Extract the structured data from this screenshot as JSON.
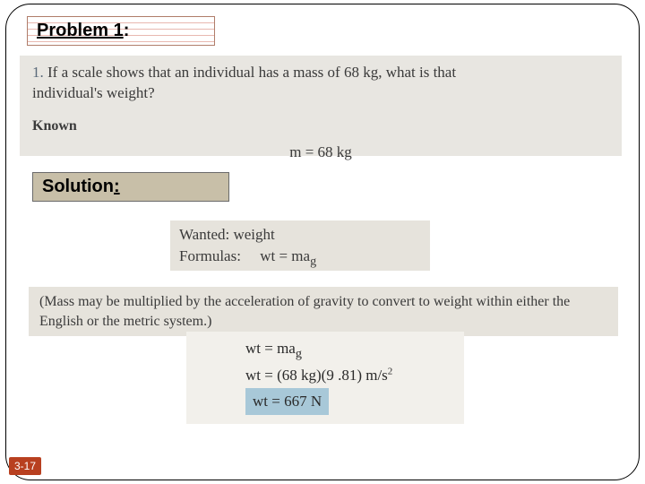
{
  "headers": {
    "problem_label": "Problem 1",
    "solution_label": "Solution"
  },
  "problem": {
    "number": "1.",
    "question_line1": "If a scale shows that an individual has a mass of 68 kg, what is that",
    "question_line2": "individual's weight?",
    "known_label": "Known",
    "known_value": "m = 68 kg"
  },
  "solution_top": {
    "wanted": "Wanted: weight",
    "formulas_label": "Formulas:",
    "formula": "wt = ma",
    "formula_sub": "g"
  },
  "note": {
    "text": "(Mass may be multiplied by the acceleration of gravity to convert to weight within either the English or the metric system.)"
  },
  "work": {
    "eq1_lhs": "wt = ma",
    "eq1_sub": "g",
    "eq2": "wt = (68 kg)(9 .81) m/s",
    "eq2_sup": "2",
    "answer": "wt = 667 N"
  },
  "slide": {
    "number": "3-17"
  },
  "colors": {
    "paper": "#e8e6e1",
    "paper2": "#e6e3dc",
    "paper3": "#f2f0eb",
    "highlight": "#a8c8d8",
    "solution_bg": "#c8bfa8",
    "problem_border": "#b07d6a",
    "slide_num_bg": "#b84020"
  }
}
